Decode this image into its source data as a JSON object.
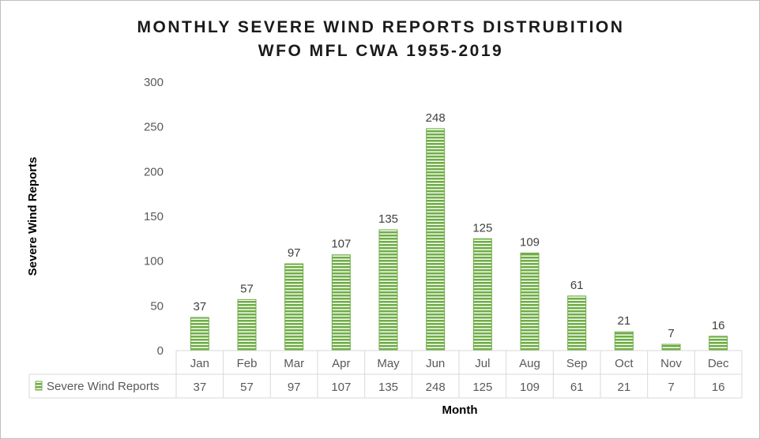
{
  "chart_data": {
    "type": "bar",
    "title": "MONTHLY SEVERE WIND REPORTS DISTRUBITION",
    "subtitle": "WFO MFL CWA 1955-2019",
    "xlabel": "Month",
    "ylabel": "Severe Wind Reports",
    "ylim": [
      0,
      300
    ],
    "yticks": [
      "0",
      "50",
      "100",
      "150",
      "200",
      "250",
      "300"
    ],
    "categories": [
      "Jan",
      "Feb",
      "Mar",
      "Apr",
      "May",
      "Jun",
      "Jul",
      "Aug",
      "Sep",
      "Oct",
      "Nov",
      "Dec"
    ],
    "series": [
      {
        "name": "Severe Wind Reports",
        "values": [
          37,
          57,
          97,
          107,
          135,
          248,
          125,
          109,
          61,
          21,
          7,
          16
        ],
        "color": "#70ad47",
        "pattern": "horizontal-stripes"
      }
    ],
    "grid": false,
    "data_table": true,
    "data_labels": true
  }
}
